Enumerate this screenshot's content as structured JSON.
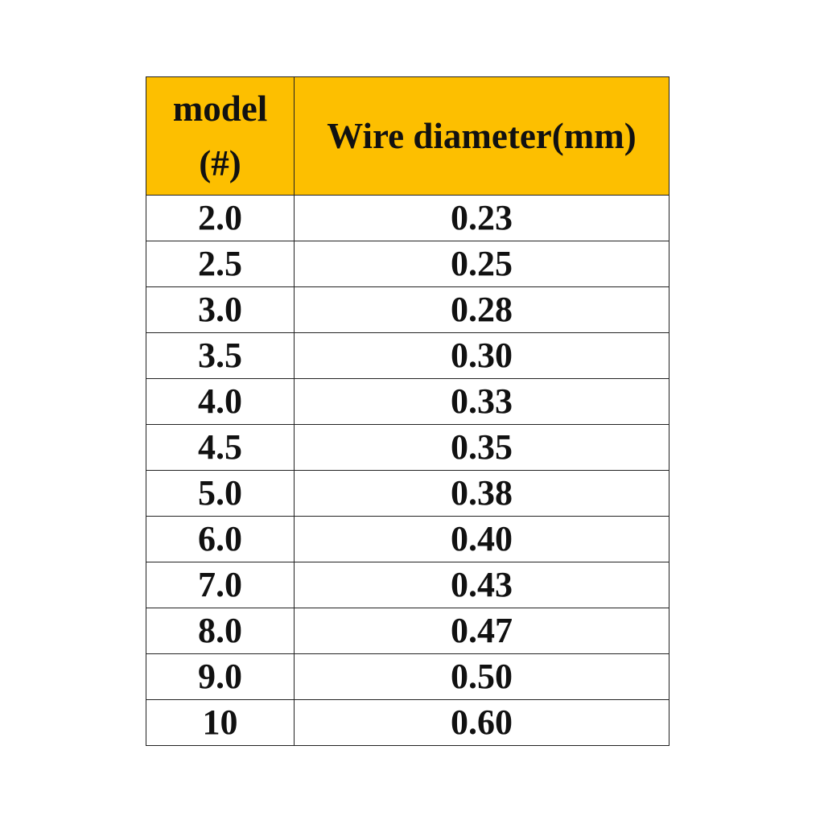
{
  "table": {
    "header": [
      "model (#)",
      "Wire diameter(mm)"
    ],
    "rows": [
      [
        "2.0",
        "0.23"
      ],
      [
        "2.5",
        "0.25"
      ],
      [
        "3.0",
        "0.28"
      ],
      [
        "3.5",
        "0.30"
      ],
      [
        "4.0",
        "0.33"
      ],
      [
        "4.5",
        "0.35"
      ],
      [
        "5.0",
        "0.38"
      ],
      [
        "6.0",
        "0.40"
      ],
      [
        "7.0",
        "0.43"
      ],
      [
        "8.0",
        "0.47"
      ],
      [
        "9.0",
        "0.50"
      ],
      [
        "10",
        "0.60"
      ]
    ]
  }
}
